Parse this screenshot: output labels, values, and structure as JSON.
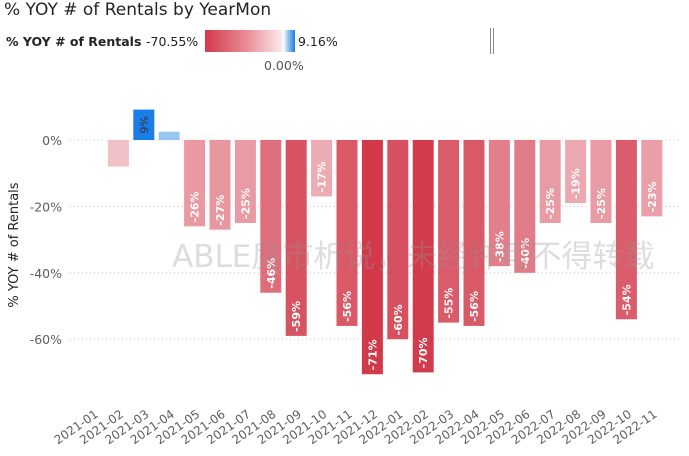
{
  "title": "% YOY # of Rentals by YearMon",
  "legend": {
    "label": "% YOY # of Rentals",
    "min": "-70.55%",
    "max": "9.16%",
    "mid": "0.00%"
  },
  "watermark": "ABLE房市析说，未经许可不得转载",
  "colors": {
    "negative": "#d23a4a",
    "positive": "#1a7ce6",
    "light": "#fbe8ea"
  },
  "chart_data": {
    "type": "bar",
    "title": "% YOY # of Rentals by YearMon",
    "xlabel": "",
    "ylabel": "% YOY # of Rentals",
    "ylim": [
      -72,
      10
    ],
    "yticks": [
      0,
      -20,
      -40,
      -60
    ],
    "ytick_labels": [
      "0%",
      "-20%",
      "-40%",
      "-60%"
    ],
    "grid": true,
    "categories": [
      "2021-01",
      "2021-02",
      "2021-03",
      "2021-04",
      "2021-05",
      "2021-06",
      "2021-07",
      "2021-08",
      "2021-09",
      "2021-10",
      "2021-11",
      "2021-12",
      "2022-01",
      "2022-02",
      "2022-03",
      "2022-04",
      "2022-05",
      "2022-06",
      "2022-07",
      "2022-08",
      "2022-09",
      "2022-10",
      "2022-11"
    ],
    "values": [
      null,
      -8,
      9.16,
      2.5,
      -26,
      -27,
      -25,
      -46,
      -59,
      -17,
      -56,
      -70.55,
      -60,
      -70,
      -55,
      -56,
      -38,
      -40,
      -25,
      -19,
      -25,
      -54,
      -23
    ],
    "data_labels": [
      "",
      "",
      "9%",
      "",
      "-26%",
      "-27%",
      "-25%",
      "-46%",
      "-59%",
      "-17%",
      "-56%",
      "-71%",
      "-60%",
      "-70%",
      "-55%",
      "-56%",
      "-38%",
      "-40%",
      "-25%",
      "-19%",
      "-25%",
      "-54%",
      "-23%"
    ]
  }
}
